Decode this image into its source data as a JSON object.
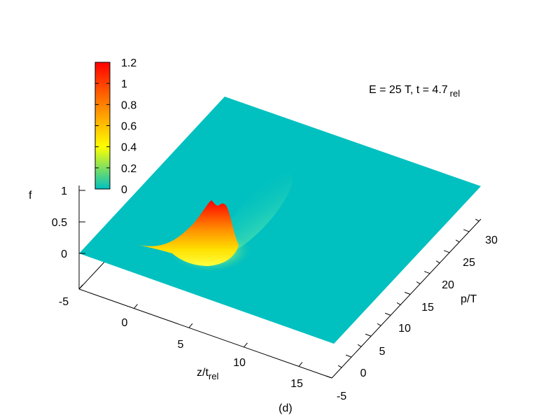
{
  "chart_data": {
    "type": "surface3d",
    "title": "E = 25 T, t = 4.7",
    "title_sub": "rel",
    "panel_label": "(d)",
    "xlabel": "z/t",
    "xlabel_sub": "rel",
    "ylabel": "p/T",
    "zlabel": "f",
    "xlim": [
      -5,
      18
    ],
    "ylim": [
      -5,
      33
    ],
    "zlim": [
      -0.05,
      1.2
    ],
    "x_ticks": [
      "-5",
      "0",
      "5",
      "10",
      "15"
    ],
    "y_ticks": [
      "-5",
      "0",
      "5",
      "10",
      "15",
      "20",
      "25",
      "30"
    ],
    "z_ticks": [
      "0",
      "0.5",
      "1"
    ],
    "colorbar": {
      "range": [
        0,
        1.2
      ],
      "ticks": [
        "0",
        "0.2",
        "0.4",
        "0.6",
        "0.8",
        "1",
        "1.2"
      ],
      "colors": [
        "#00c0c0",
        "#ffff00",
        "#ff8000",
        "#ff0000"
      ]
    },
    "surface": {
      "baseline": 0,
      "peak_max": 1.17,
      "peak_location": {
        "z": 4.7,
        "p": 0
      },
      "description_points": [
        {
          "z": -5,
          "p": 0,
          "f": 0
        },
        {
          "z": 2,
          "p": 0,
          "f": 0.05
        },
        {
          "z": 4,
          "p": 0,
          "f": 0.45
        },
        {
          "z": 4.7,
          "p": 0,
          "f": 1.17
        },
        {
          "z": 5.3,
          "p": 0,
          "f": 1.13
        },
        {
          "z": 6,
          "p": 0,
          "f": 0.2
        },
        {
          "z": 8,
          "p": 0,
          "f": 0
        }
      ]
    },
    "grid": false,
    "legend": "colorbar top-left"
  }
}
